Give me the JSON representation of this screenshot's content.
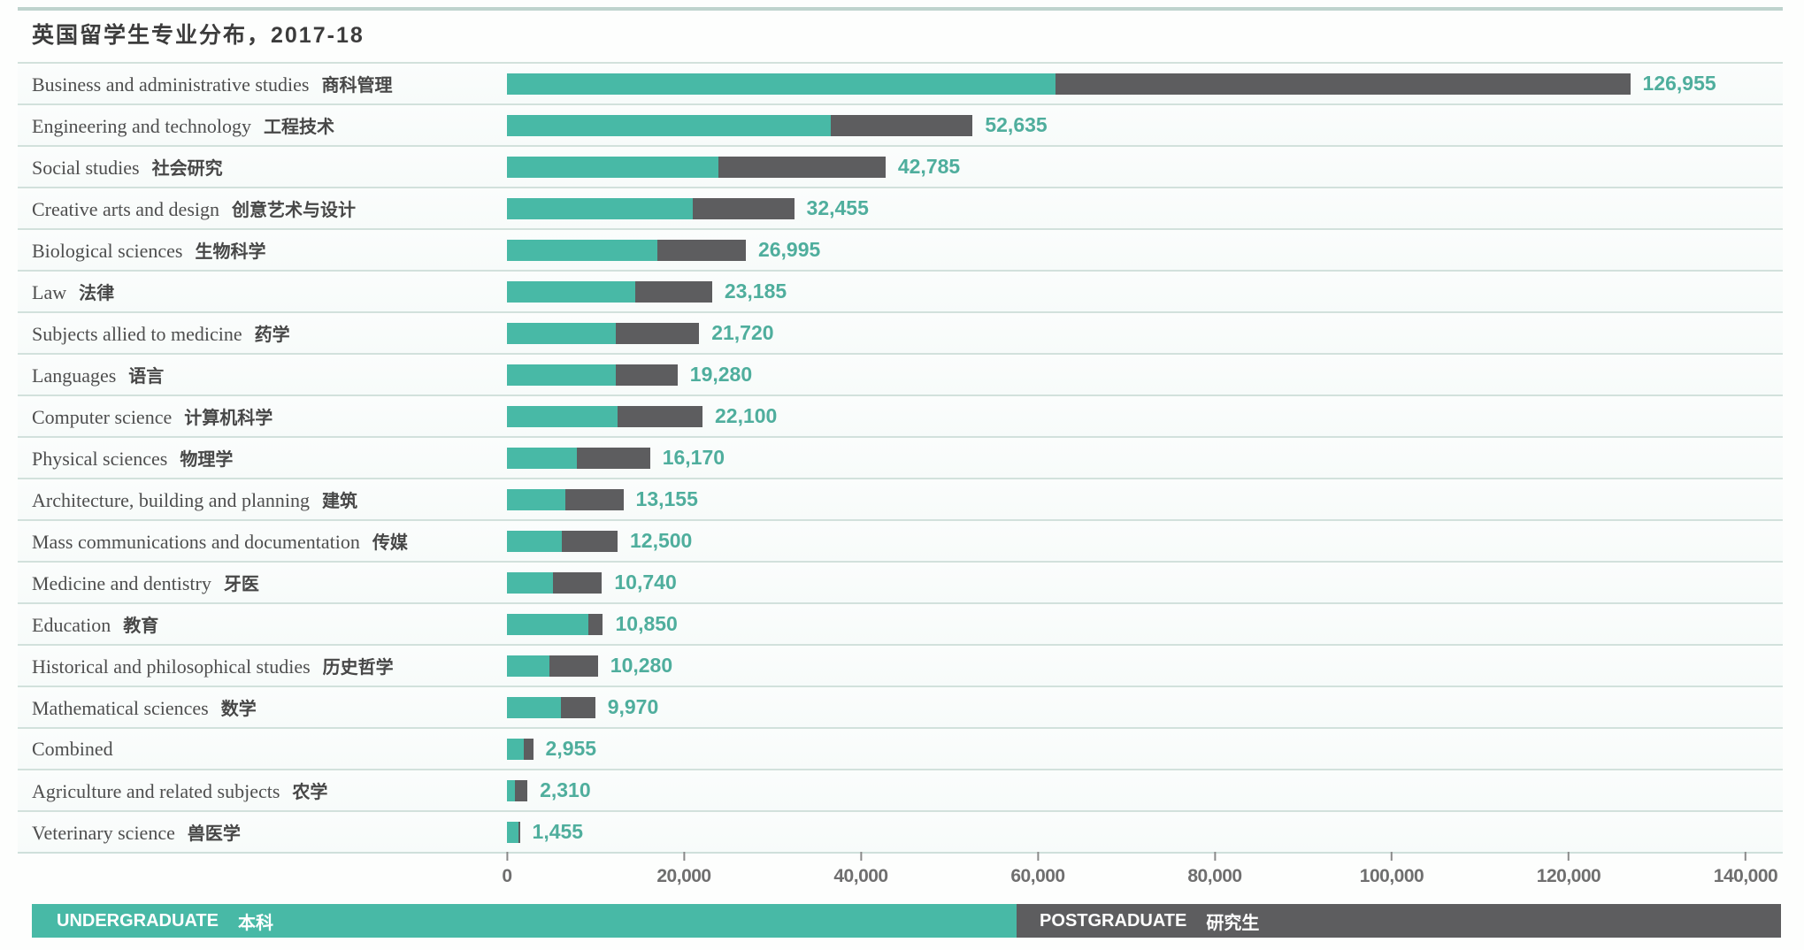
{
  "page": {
    "title": "英国留学生专业分布，2017-18"
  },
  "chart_data": {
    "type": "bar",
    "orientation": "horizontal",
    "stacked": true,
    "title": "英国留学生专业分布，2017-18",
    "x_axis": {
      "min": 0,
      "max": 140000,
      "ticks": [
        {
          "value": 0,
          "label": "0"
        },
        {
          "value": 20000,
          "label": "20,000"
        },
        {
          "value": 40000,
          "label": "40,000"
        },
        {
          "value": 60000,
          "label": "60,000"
        },
        {
          "value": 80000,
          "label": "80,000"
        },
        {
          "value": 100000,
          "label": "100,000"
        },
        {
          "value": 120000,
          "label": "120,000"
        },
        {
          "value": 140000,
          "label": "140,000"
        }
      ]
    },
    "series_names": [
      "UNDERGRADUATE",
      "POSTGRADUATE"
    ],
    "rows": [
      {
        "label_en": "Business and administrative studies",
        "label_zh": "商科管理",
        "total": 126955,
        "total_label": "126,955",
        "undergraduate": 62000,
        "postgraduate": 64955
      },
      {
        "label_en": "Engineering and technology",
        "label_zh": "工程技术",
        "total": 52635,
        "total_label": "52,635",
        "undergraduate": 36600,
        "postgraduate": 16035
      },
      {
        "label_en": "Social studies",
        "label_zh": "社会研究",
        "total": 42785,
        "total_label": "42,785",
        "undergraduate": 23900,
        "postgraduate": 18885
      },
      {
        "label_en": "Creative arts and design",
        "label_zh": "创意艺术与设计",
        "total": 32455,
        "total_label": "32,455",
        "undergraduate": 21000,
        "postgraduate": 11455
      },
      {
        "label_en": "Biological sciences",
        "label_zh": "生物科学",
        "total": 26995,
        "total_label": "26,995",
        "undergraduate": 17000,
        "postgraduate": 9995
      },
      {
        "label_en": "Law",
        "label_zh": "法律",
        "total": 23185,
        "total_label": "23,185",
        "undergraduate": 14500,
        "postgraduate": 8685
      },
      {
        "label_en": "Subjects allied to medicine",
        "label_zh": "药学",
        "total": 21720,
        "total_label": "21,720",
        "undergraduate": 12340,
        "postgraduate": 9380
      },
      {
        "label_en": "Languages",
        "label_zh": "语言",
        "total": 19280,
        "total_label": "19,280",
        "undergraduate": 12340,
        "postgraduate": 6940
      },
      {
        "label_en": "Computer science",
        "label_zh": "计算机科学",
        "total": 22100,
        "total_label": "22,100",
        "undergraduate": 12530,
        "postgraduate": 9570
      },
      {
        "label_en": "Physical sciences",
        "label_zh": "物理学",
        "total": 16170,
        "total_label": "16,170",
        "undergraduate": 7930,
        "postgraduate": 8240
      },
      {
        "label_en": "Architecture, building and planning",
        "label_zh": "建筑",
        "total": 13155,
        "total_label": "13,155",
        "undergraduate": 6600,
        "postgraduate": 6555
      },
      {
        "label_en": "Mass communications and documentation",
        "label_zh": "传媒",
        "total": 12500,
        "total_label": "12,500",
        "undergraduate": 6200,
        "postgraduate": 6300
      },
      {
        "label_en": "Medicine and dentistry",
        "label_zh": "牙医",
        "total": 10740,
        "total_label": "10,740",
        "undergraduate": 5200,
        "postgraduate": 5540
      },
      {
        "label_en": "Education",
        "label_zh": "教育",
        "total": 10850,
        "total_label": "10,850",
        "undergraduate": 9200,
        "postgraduate": 1650
      },
      {
        "label_en": "Historical and philosophical studies",
        "label_zh": "历史哲学",
        "total": 10280,
        "total_label": "10,280",
        "undergraduate": 4770,
        "postgraduate": 5510
      },
      {
        "label_en": "Mathematical sciences",
        "label_zh": "数学",
        "total": 9970,
        "total_label": "9,970",
        "undergraduate": 6100,
        "postgraduate": 3870
      },
      {
        "label_en": "Combined",
        "label_zh": "",
        "total": 2955,
        "total_label": "2,955",
        "undergraduate": 1950,
        "postgraduate": 1005
      },
      {
        "label_en": "Agriculture and related subjects",
        "label_zh": "农学",
        "total": 2310,
        "total_label": "2,310",
        "undergraduate": 950,
        "postgraduate": 1360
      },
      {
        "label_en": "Veterinary science",
        "label_zh": "兽医学",
        "total": 1455,
        "total_label": "1,455",
        "undergraduate": 1300,
        "postgraduate": 155
      }
    ],
    "legend": [
      {
        "label_en": "UNDERGRADUATE",
        "label_zh": "本科",
        "color": "#48b9a6"
      },
      {
        "label_en": "POSTGRADUATE",
        "label_zh": "研究生",
        "color": "#5d5d5f"
      }
    ],
    "legend_position": "bottom",
    "grid": false
  },
  "colors": {
    "undergraduate": "#48b9a6",
    "postgraduate": "#5d5d5f",
    "value_label": "#4fae9d",
    "separator": "#d2e1dc",
    "axis_text": "#6f6f6f",
    "title_text": "#3c3c3c"
  }
}
